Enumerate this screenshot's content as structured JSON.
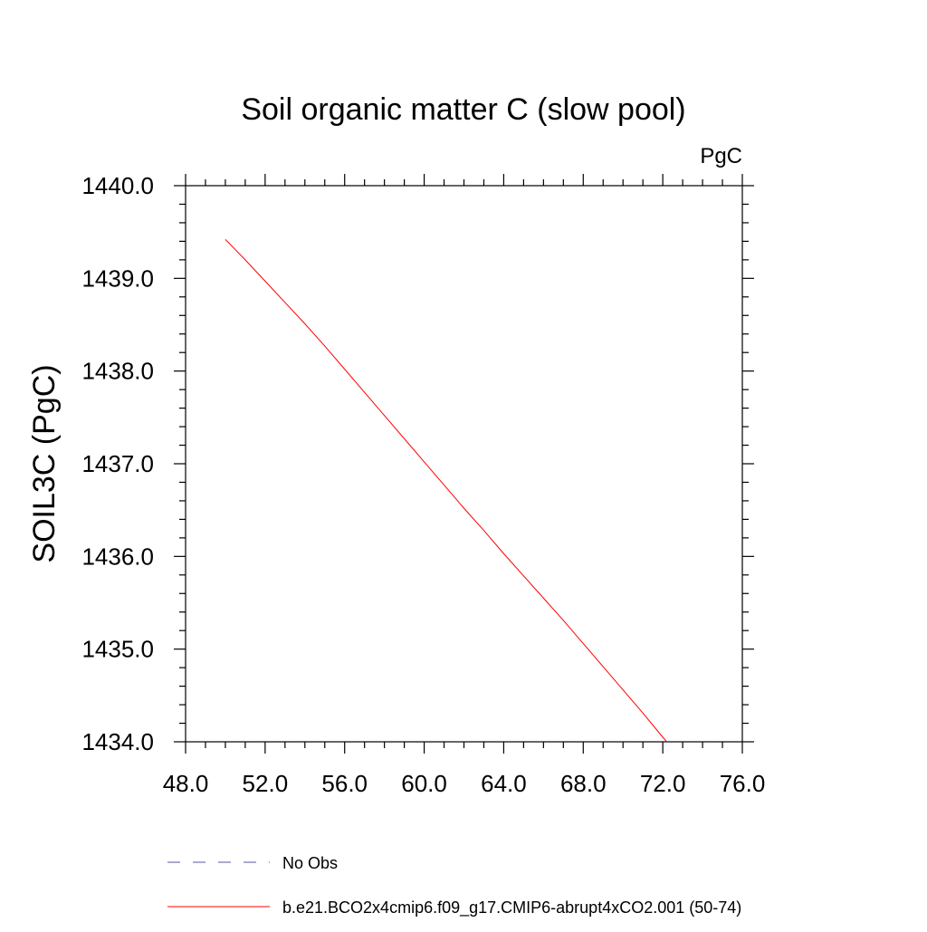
{
  "chart_data": {
    "type": "line",
    "title": "Soil organic matter C (slow pool)",
    "units_label": "PgC",
    "xlabel": "",
    "ylabel": "SOIL3C  (PgC)",
    "xlim": [
      48.0,
      76.0
    ],
    "ylim": [
      1434.0,
      1440.0
    ],
    "xticks": [
      "48.0",
      "52.0",
      "56.0",
      "60.0",
      "64.0",
      "68.0",
      "72.0",
      "76.0"
    ],
    "yticks": [
      "1434.0",
      "1435.0",
      "1436.0",
      "1437.0",
      "1438.0",
      "1439.0",
      "1440.0"
    ],
    "grid": false,
    "legend_placement": "bottom",
    "series": [
      {
        "name": "b.e21.BCO2x4cmip6.f09_g17.CMIP6-abrupt4xCO2.001 (50-74)",
        "color": "#ff0000",
        "style": "solid",
        "x": [
          50,
          51,
          52,
          53,
          54,
          55,
          56,
          57,
          58,
          59,
          60,
          61,
          62,
          63,
          64,
          65,
          66,
          67,
          68,
          69,
          70,
          71,
          72,
          73,
          74
        ],
        "y": [
          1439.42,
          1439.2,
          1438.97,
          1438.74,
          1438.51,
          1438.27,
          1438.02,
          1437.77,
          1437.52,
          1437.27,
          1437.02,
          1436.77,
          1436.52,
          1436.28,
          1436.03,
          1435.79,
          1435.55,
          1435.31,
          1435.06,
          1434.81,
          1434.56,
          1434.31,
          1434.05,
          1433.8,
          1433.55
        ]
      }
    ],
    "legend": [
      {
        "label": "No Obs",
        "color": "#5555aa",
        "style": "dashed"
      },
      {
        "label": "b.e21.BCO2x4cmip6.f09_g17.CMIP6-abrupt4xCO2.001 (50-74)",
        "color": "#ff0000",
        "style": "solid"
      }
    ]
  }
}
